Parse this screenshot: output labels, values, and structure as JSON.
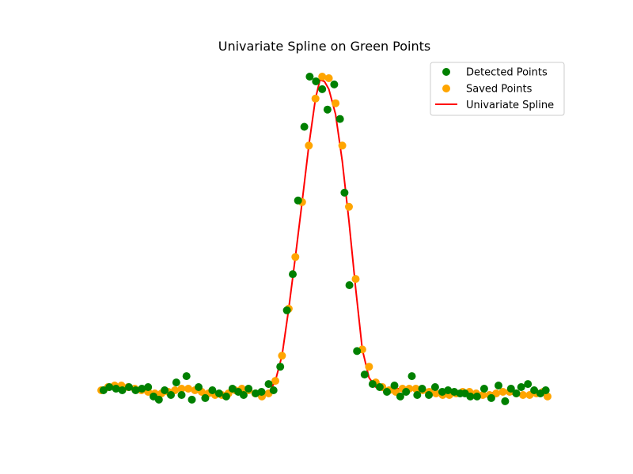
{
  "chart_data": {
    "type": "scatter",
    "title": "Univariate Spline on Green Points",
    "xlabel": "",
    "ylabel": "",
    "axes_visible": false,
    "grid": false,
    "legend_position": "top-right",
    "xlim": [
      0,
      100
    ],
    "ylim": [
      -0.15,
      1.1
    ],
    "colors": {
      "detected": "#008000",
      "saved": "#ffa500",
      "spline": "#ff0000"
    },
    "legend": {
      "detected_label": "Detected Points",
      "saved_label": "Saved Points",
      "spline_label": "Univariate Spline"
    },
    "series": [
      {
        "name": "Detected Points",
        "kind": "scatter",
        "x": [
          0.5,
          1.8,
          3.3,
          4.7,
          6.2,
          7.7,
          9.1,
          10.5,
          11.7,
          12.9,
          14.2,
          15.6,
          16.8,
          18.0,
          19.1,
          20.3,
          21.8,
          23.3,
          24.9,
          26.4,
          28.0,
          29.4,
          30.7,
          31.9,
          33.0,
          34.6,
          35.9,
          37.5,
          38.6,
          40.1,
          41.6,
          42.9,
          44.1,
          45.5,
          46.7,
          48.1,
          49.5,
          50.7,
          52.2,
          53.5,
          54.5,
          55.6,
          57.3,
          59.0,
          60.8,
          62.4,
          64.0,
          65.7,
          67.0,
          68.3,
          69.6,
          70.8,
          71.9,
          73.4,
          74.8,
          76.4,
          77.7,
          79.1,
          80.4,
          81.5,
          82.7,
          84.2,
          85.8,
          87.4,
          89.0,
          90.5,
          91.8,
          93.0,
          94.1,
          95.6,
          97.0,
          98.4,
          99.6
        ],
        "y": [
          0.0,
          0.01,
          0.005,
          0.0,
          0.01,
          0.0,
          0.005,
          0.01,
          -0.02,
          -0.03,
          0.0,
          -0.015,
          0.025,
          -0.015,
          0.045,
          -0.03,
          0.01,
          -0.025,
          0.0,
          -0.01,
          -0.02,
          0.005,
          -0.005,
          -0.015,
          0.005,
          -0.01,
          -0.005,
          0.02,
          0.0,
          0.075,
          0.255,
          0.37,
          0.605,
          0.84,
          1.0,
          0.985,
          0.96,
          0.895,
          0.975,
          0.865,
          0.63,
          0.335,
          0.125,
          0.05,
          0.02,
          0.01,
          -0.005,
          0.015,
          -0.02,
          -0.005,
          0.045,
          -0.015,
          0.005,
          -0.015,
          0.01,
          -0.005,
          0.0,
          -0.005,
          -0.01,
          -0.01,
          -0.02,
          -0.02,
          0.005,
          -0.025,
          0.015,
          -0.035,
          0.005,
          -0.01,
          0.01,
          0.02,
          0.0,
          -0.01,
          0.0
        ]
      },
      {
        "name": "Saved Points",
        "kind": "scatter",
        "x": [
          0.0,
          1.5,
          3.0,
          4.5,
          6.0,
          7.5,
          9.0,
          10.5,
          12.0,
          13.5,
          15.0,
          16.5,
          18.0,
          19.5,
          21.0,
          22.5,
          24.0,
          25.5,
          27.0,
          28.5,
          30.0,
          31.5,
          33.0,
          34.5,
          36.0,
          37.5,
          39.0,
          40.5,
          42.0,
          43.5,
          45.0,
          46.5,
          48.0,
          49.5,
          51.0,
          52.5,
          54.0,
          55.5,
          57.0,
          58.5,
          60.0,
          61.5,
          63.0,
          64.5,
          66.0,
          67.5,
          69.0,
          70.5,
          72.0,
          73.5,
          75.0,
          76.5,
          78.0,
          79.5,
          81.0,
          82.5,
          84.0,
          85.5,
          87.0,
          88.5,
          90.0,
          91.5,
          93.0,
          94.5,
          96.0,
          97.5,
          99.0,
          100.0
        ],
        "y": [
          0.0,
          0.01,
          0.015,
          0.015,
          0.01,
          0.005,
          0.0,
          -0.005,
          -0.01,
          -0.01,
          -0.005,
          0.0,
          0.005,
          0.005,
          0.0,
          -0.005,
          -0.01,
          -0.015,
          -0.015,
          -0.01,
          0.0,
          0.005,
          0.0,
          -0.01,
          -0.02,
          -0.01,
          0.03,
          0.11,
          0.26,
          0.425,
          0.6,
          0.78,
          0.93,
          1.0,
          0.995,
          0.915,
          0.78,
          0.585,
          0.355,
          0.13,
          0.075,
          0.025,
          0.01,
          0.0,
          -0.005,
          0.005,
          0.005,
          0.005,
          0.0,
          -0.005,
          -0.01,
          -0.015,
          -0.015,
          -0.01,
          -0.005,
          -0.005,
          -0.01,
          -0.015,
          -0.015,
          -0.01,
          -0.005,
          -0.005,
          -0.01,
          -0.015,
          -0.015,
          -0.01,
          -0.005,
          -0.02
        ]
      },
      {
        "name": "Univariate Spline",
        "kind": "line",
        "x": [
          0,
          1.5,
          3,
          4.5,
          6,
          7.5,
          9,
          10.5,
          12,
          13.5,
          15,
          16.5,
          18,
          19.5,
          21,
          22.5,
          24,
          25.5,
          27,
          28.5,
          30,
          31.5,
          33,
          34.5,
          36,
          37.5,
          39,
          40.5,
          42,
          43.5,
          45,
          46.5,
          48,
          49,
          50,
          51,
          52.5,
          54,
          55.5,
          57,
          58.5,
          60,
          61.5,
          63,
          64.5,
          66,
          67.5,
          69,
          70.5,
          72,
          73.5,
          75,
          76.5,
          78,
          79.5,
          81,
          82.5,
          84,
          85.5,
          87,
          88.5,
          90,
          91.5,
          93,
          94.5,
          96,
          97.5,
          99,
          100
        ],
        "y": [
          0.0,
          0.01,
          0.015,
          0.015,
          0.01,
          0.005,
          0.0,
          -0.005,
          -0.01,
          -0.01,
          -0.005,
          0.0,
          0.005,
          0.005,
          0.0,
          -0.005,
          -0.01,
          -0.015,
          -0.015,
          -0.01,
          0.0,
          0.005,
          0.0,
          -0.01,
          -0.02,
          -0.01,
          0.03,
          0.11,
          0.26,
          0.425,
          0.6,
          0.78,
          0.93,
          0.99,
          0.985,
          0.96,
          0.88,
          0.73,
          0.54,
          0.325,
          0.13,
          0.04,
          0.01,
          0.0,
          -0.005,
          0.005,
          0.005,
          0.005,
          0.0,
          -0.005,
          -0.01,
          -0.015,
          -0.015,
          -0.01,
          -0.005,
          -0.005,
          -0.01,
          -0.015,
          -0.015,
          -0.01,
          -0.005,
          -0.005,
          -0.01,
          -0.015,
          -0.015,
          -0.01,
          -0.005,
          -0.005,
          -0.02
        ]
      }
    ]
  }
}
